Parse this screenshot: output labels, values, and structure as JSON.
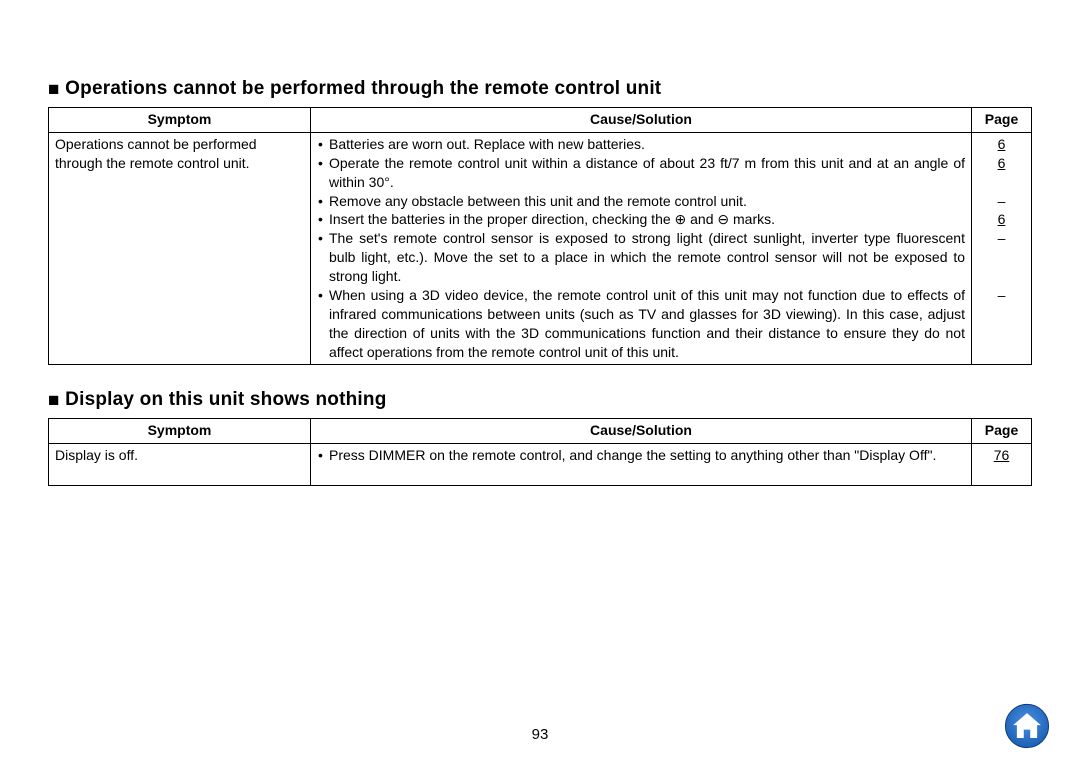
{
  "sections": [
    {
      "heading": "Operations cannot be performed through the remote control unit",
      "columns": {
        "symptom": "Symptom",
        "cause": "Cause/Solution",
        "page": "Page"
      },
      "rows": [
        {
          "symptom": "Operations cannot be performed through the remote control unit.",
          "causes": [
            "Batteries are worn out. Replace with new batteries.",
            "Operate the remote control unit within a distance of about 23 ft/7 m from this unit and at an angle of within 30°.",
            "Remove any obstacle between this unit and the remote control unit.",
            "Insert the batteries in the proper direction, checking the ⊕ and ⊖ marks.",
            "The set's remote control sensor is exposed to strong light (direct sunlight, inverter type fluorescent bulb light, etc.). Move the set to a place in which the remote control sensor will not be exposed to strong light.",
            "When using a 3D video device, the remote control unit of this unit may not function due to effects of infrared communications between units (such as TV and glasses for 3D viewing). In this case, adjust the direction of units with the 3D communications function and their distance to ensure they do not affect operations from the remote control unit of this unit."
          ],
          "pages": [
            "6",
            "6",
            "–",
            "6",
            "–",
            "–"
          ],
          "cause_line_counts": [
            1,
            2,
            1,
            1,
            3,
            4
          ]
        }
      ]
    },
    {
      "heading": "Display on this unit shows nothing",
      "columns": {
        "symptom": "Symptom",
        "cause": "Cause/Solution",
        "page": "Page"
      },
      "rows": [
        {
          "symptom": "Display is off.",
          "causes": [
            "Press DIMMER on the remote control, and change the setting to anything other than \"Display Off\"."
          ],
          "pages": [
            "76"
          ],
          "cause_line_counts": [
            2
          ]
        }
      ]
    }
  ],
  "page_number": "93",
  "home_icon": {
    "circle_fill": "#1a5fb4",
    "house_fill": "#ffffff",
    "border": "#0d3c78"
  }
}
